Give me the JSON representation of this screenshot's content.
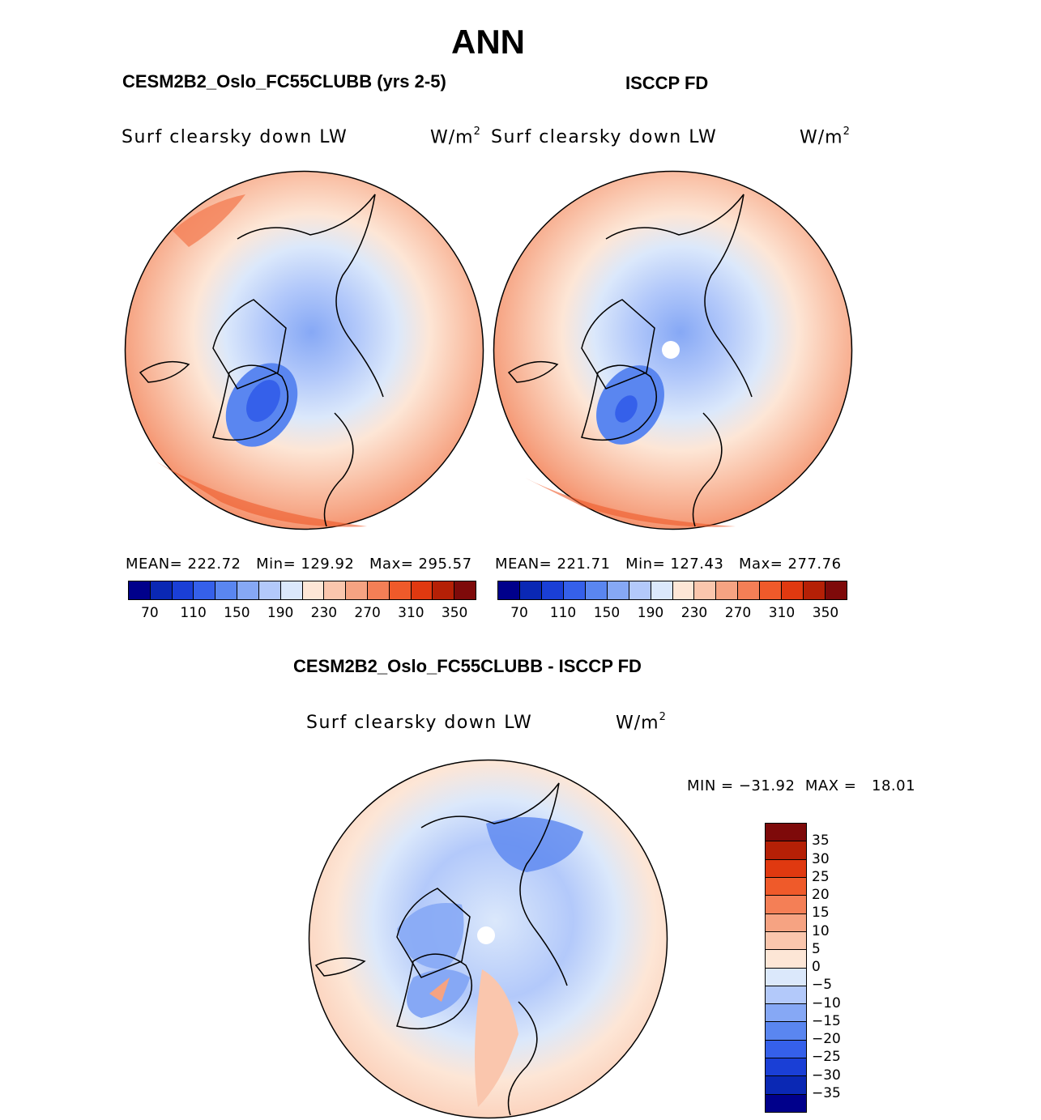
{
  "title": "ANN",
  "panels": {
    "model": {
      "title": "CESM2B2_Oslo_FC55CLUBB (yrs 2-5)",
      "variable": "Surf clearsky down LW",
      "units": "W/m",
      "units_exp": "2",
      "stats_text": "MEAN= 222.72   Min= 129.92   Max= 295.57",
      "mean": 222.72,
      "min": 129.92,
      "max": 295.57
    },
    "obs": {
      "title": "ISCCP FD",
      "variable": "Surf clearsky down LW",
      "units": "W/m",
      "units_exp": "2",
      "stats_text": "MEAN= 221.71   Min= 127.43   Max= 277.76",
      "mean": 221.71,
      "min": 127.43,
      "max": 277.76
    },
    "diff": {
      "title": "CESM2B2_Oslo_FC55CLUBB - ISCCP FD",
      "variable": "Surf clearsky down LW",
      "units": "W/m",
      "units_exp": "2",
      "stats_text": "MIN = −31.92  MAX =   18.01",
      "min": -31.92,
      "max": 18.01
    }
  },
  "colorbars": {
    "absolute": {
      "colors": [
        "#00008b",
        "#0a28b4",
        "#1a3fd6",
        "#3560ea",
        "#5a86f0",
        "#86a8f5",
        "#b3c9fa",
        "#dbe8fb",
        "#fde6d6",
        "#fac6ad",
        "#f6a382",
        "#f47f56",
        "#ef5a2a",
        "#e03910",
        "#b52006",
        "#7e0a0a"
      ],
      "ticks": [
        "70",
        "110",
        "150",
        "190",
        "230",
        "270",
        "310",
        "350"
      ]
    },
    "difference": {
      "colors": [
        "#7e0a0a",
        "#b52006",
        "#e03910",
        "#ef5a2a",
        "#f47f56",
        "#f6a382",
        "#fac6ad",
        "#fde6d6",
        "#dbe8fb",
        "#b3c9fa",
        "#86a8f5",
        "#5a86f0",
        "#3560ea",
        "#1a3fd6",
        "#0a28b4",
        "#00008b"
      ],
      "ticks": [
        "35",
        "30",
        "25",
        "20",
        "15",
        "10",
        "5",
        "0",
        "−5",
        "−10",
        "−15",
        "−20",
        "−25",
        "−30",
        "−35"
      ]
    }
  }
}
